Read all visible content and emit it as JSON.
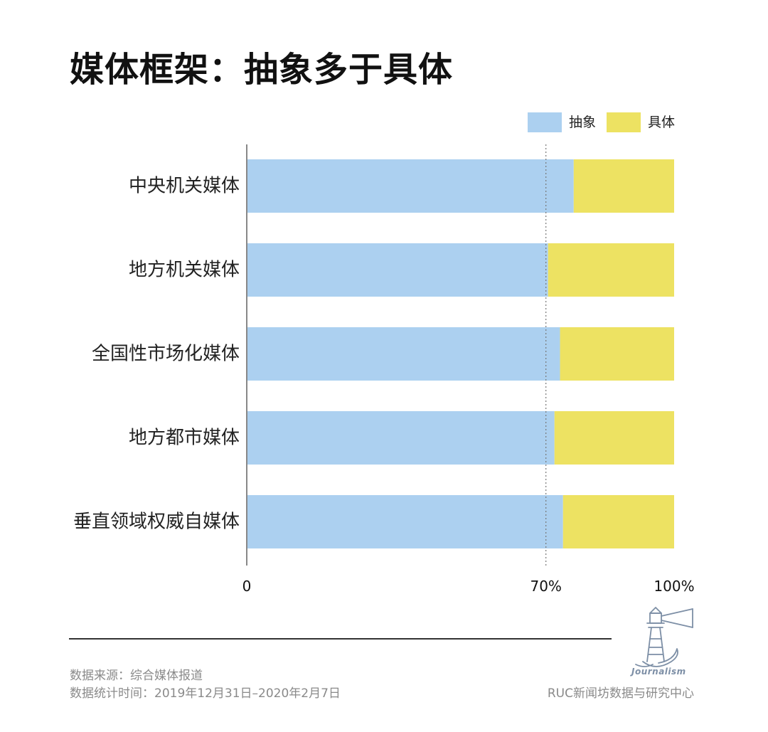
{
  "title": "媒体框架：抽象多于具体",
  "chart_data": {
    "type": "bar",
    "orientation": "horizontal",
    "stacked": true,
    "categories": [
      "中央机关媒体",
      "地方机关媒体",
      "全国性市场化媒体",
      "地方都市媒体",
      "垂直领域权威自媒体"
    ],
    "series": [
      {
        "name": "抽象",
        "color": "#acd0f0",
        "values": [
          76.5,
          70.5,
          73.3,
          72,
          74
        ]
      },
      {
        "name": "具体",
        "color": "#ede262",
        "values": [
          23.5,
          29.5,
          26.7,
          28,
          26
        ]
      }
    ],
    "xlim": [
      0,
      100
    ],
    "ticks": [
      {
        "value": 0,
        "label": "0"
      },
      {
        "value": 70,
        "label": "70%"
      },
      {
        "value": 100,
        "label": "100%"
      }
    ],
    "reference_line": 70,
    "legend_position": "top-right"
  },
  "footer": {
    "source": "数据来源：综合媒体报道",
    "period": "数据统计时间：2019年12月31日–2020年2月7日",
    "org": "RUC新闻坊数据与研究中心",
    "logo_text": "Journalism"
  }
}
